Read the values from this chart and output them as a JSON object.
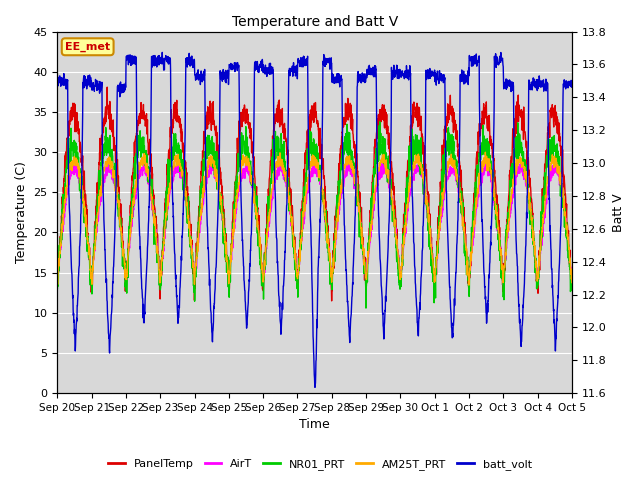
{
  "title": "Temperature and Batt V",
  "xlabel": "Time",
  "ylabel_left": "Temperature (C)",
  "ylabel_right": "Batt V",
  "ylim_left": [
    0,
    45
  ],
  "ylim_right": [
    11.6,
    13.8
  ],
  "annotation_text": "EE_met",
  "annotation_color": "#cc0000",
  "annotation_bg": "#ffff99",
  "annotation_border": "#cc8800",
  "legend_entries": [
    "PanelTemp",
    "AirT",
    "NR01_PRT",
    "AM25T_PRT",
    "batt_volt"
  ],
  "legend_colors": [
    "#dd0000",
    "#ff00ff",
    "#00cc00",
    "#ffaa00",
    "#0000cc"
  ],
  "line_width": 1.0,
  "num_days": 15,
  "x_tick_labels": [
    "Sep 20",
    "Sep 21",
    "Sep 22",
    "Sep 23",
    "Sep 24",
    "Sep 25",
    "Sep 26",
    "Sep 27",
    "Sep 28",
    "Sep 29",
    "Sep 30",
    "Oct 1",
    "Oct 2",
    "Oct 3",
    "Oct 4",
    "Oct 5"
  ],
  "yticks_left": [
    0,
    5,
    10,
    15,
    20,
    25,
    30,
    35,
    40,
    45
  ],
  "yticks_right": [
    11.6,
    11.8,
    12.0,
    12.2,
    12.4,
    12.6,
    12.8,
    13.0,
    13.2,
    13.4,
    13.6,
    13.8
  ]
}
